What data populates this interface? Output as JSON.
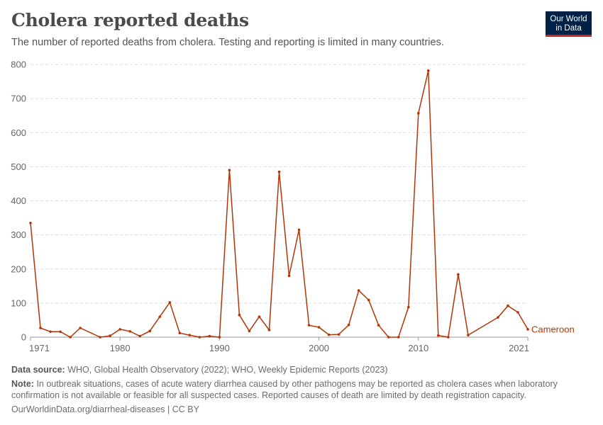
{
  "header": {
    "title": "Cholera reported deaths",
    "subtitle": "The number of reported deaths from cholera. Testing and reporting is limited in many countries."
  },
  "logo": {
    "line1": "Our World",
    "line2": "in Data"
  },
  "footer": {
    "source_label": "Data source:",
    "source_text": "WHO, Global Health Observatory (2022); WHO, Weekly Epidemic Reports (2023)",
    "note_label": "Note:",
    "note_text": "In outbreak situations, cases of acute watery diarrhea caused by other pathogens may be reported as cholera cases when laboratory confirmation is not available or feasible for all suspected cases. Reported causes of death are limited by death registration capacity.",
    "url": "OurWorldinData.org/diarrheal-diseases | CC BY"
  },
  "colors": {
    "series": "#b13507",
    "grid": "#dddddd",
    "axis": "#999999"
  },
  "chart_data": {
    "type": "line",
    "title": "Cholera reported deaths",
    "xlim": [
      1971,
      2021
    ],
    "ylim": [
      0,
      800
    ],
    "yticks": [
      0,
      100,
      200,
      300,
      400,
      500,
      600,
      700,
      800
    ],
    "xticks": [
      1971,
      1980,
      1990,
      2000,
      2010,
      2021
    ],
    "grid": true,
    "series": [
      {
        "name": "Cameroon",
        "points": [
          [
            1971,
            335
          ],
          [
            1972,
            27
          ],
          [
            1973,
            16
          ],
          [
            1974,
            16
          ],
          [
            1975,
            0
          ],
          [
            1976,
            27
          ],
          [
            1978,
            0
          ],
          [
            1979,
            4
          ],
          [
            1980,
            23
          ],
          [
            1981,
            17
          ],
          [
            1982,
            3
          ],
          [
            1983,
            18
          ],
          [
            1984,
            60
          ],
          [
            1985,
            102
          ],
          [
            1986,
            12
          ],
          [
            1987,
            6
          ],
          [
            1988,
            0
          ],
          [
            1989,
            3
          ],
          [
            1990,
            0
          ],
          [
            1991,
            490
          ],
          [
            1992,
            65
          ],
          [
            1993,
            18
          ],
          [
            1994,
            60
          ],
          [
            1995,
            21
          ],
          [
            1996,
            485
          ],
          [
            1997,
            180
          ],
          [
            1998,
            315
          ],
          [
            1999,
            35
          ],
          [
            2000,
            29
          ],
          [
            2001,
            7
          ],
          [
            2002,
            8
          ],
          [
            2003,
            36
          ],
          [
            2004,
            137
          ],
          [
            2005,
            109
          ],
          [
            2006,
            35
          ],
          [
            2007,
            0
          ],
          [
            2008,
            0
          ],
          [
            2009,
            88
          ],
          [
            2010,
            657
          ],
          [
            2011,
            782
          ],
          [
            2012,
            5
          ],
          [
            2013,
            0
          ],
          [
            2014,
            184
          ],
          [
            2015,
            6
          ],
          [
            2018,
            58
          ],
          [
            2019,
            92
          ],
          [
            2020,
            73
          ],
          [
            2021,
            23
          ]
        ]
      }
    ]
  }
}
